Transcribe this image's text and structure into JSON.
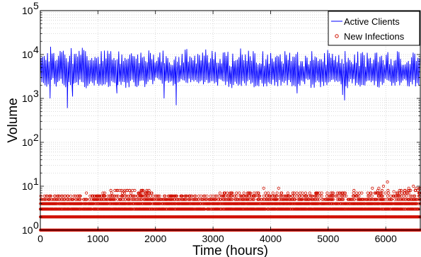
{
  "chart_data": {
    "type": "line",
    "xlabel": "Time (hours)",
    "ylabel": "Volume",
    "xlim": [
      0,
      6600
    ],
    "ylim": [
      1,
      100000
    ],
    "yscale": "log",
    "xticks": [
      0,
      1000,
      2000,
      3000,
      4000,
      5000,
      6000
    ],
    "xtick_labels": [
      "0",
      "1000",
      "2000",
      "3000",
      "4000",
      "5000",
      "6000"
    ],
    "yticks": [
      1,
      10,
      100,
      1000,
      10000,
      100000
    ],
    "ytick_labels": [
      {
        "base": "10",
        "exp": "0"
      },
      {
        "base": "10",
        "exp": "1"
      },
      {
        "base": "10",
        "exp": "2"
      },
      {
        "base": "10",
        "exp": "3"
      },
      {
        "base": "10",
        "exp": "4"
      },
      {
        "base": "10",
        "exp": "5"
      }
    ],
    "grid": true,
    "legend_position": "top-right",
    "series": [
      {
        "name": "Active Clients",
        "style": "line",
        "color": "#0000ff",
        "period_hours": 24,
        "peak_values": [
          12000,
          15000,
          16000,
          13000,
          17000,
          15000,
          14000,
          12000,
          16000,
          13000,
          12000,
          11000,
          13000,
          14000,
          12500,
          13500,
          12000,
          14000,
          13000,
          12000,
          11500,
          12500,
          13000,
          12000,
          14000,
          13500,
          12000,
          11000,
          13000,
          12000,
          14000,
          12500,
          12000,
          13000,
          14500,
          12500,
          14000,
          12000,
          13000,
          12000,
          11000,
          12500,
          14000,
          13000,
          12000,
          11500,
          13000,
          12500,
          12000,
          14000,
          11000,
          12000,
          13000,
          12500,
          12000,
          11000,
          13000,
          12000,
          11500,
          12500,
          13000,
          12000,
          14000,
          11500,
          12000,
          13000,
          12500,
          12000,
          11000,
          13000,
          12000,
          12500,
          11000,
          13000,
          12000,
          12500,
          11500,
          12000,
          13000,
          12000
        ],
        "trough_values": [
          2200,
          2000,
          2400,
          2100,
          2300,
          2000,
          1900,
          2100,
          2200,
          2000,
          2100,
          2300,
          2000,
          2200,
          2100,
          2000,
          2300,
          2100,
          2000,
          2200,
          2100,
          2300,
          2000,
          2200,
          2400,
          2300,
          2200,
          2100,
          2300,
          2200,
          2100,
          2300,
          2200,
          2400,
          2300,
          2200,
          2100,
          2300,
          2200,
          2100,
          2000,
          2200,
          2100,
          2000,
          2300,
          2100,
          2200,
          2000,
          2100,
          2300,
          2200,
          2400,
          2100,
          2000,
          2200,
          2100,
          2300,
          2000,
          2200,
          2100,
          2000,
          2300,
          2200,
          2100,
          2000,
          2200,
          2300,
          2100,
          2000,
          2200,
          2100,
          2000,
          2300,
          2200,
          2100,
          2000,
          2200,
          2100,
          2300,
          2000
        ],
        "dips": [
          {
            "x": 170,
            "y": 1000
          },
          {
            "x": 470,
            "y": 600
          },
          {
            "x": 560,
            "y": 1100
          },
          {
            "x": 1330,
            "y": 1300
          },
          {
            "x": 2150,
            "y": 1000
          },
          {
            "x": 2360,
            "y": 700
          },
          {
            "x": 4460,
            "y": 1300
          },
          {
            "x": 5250,
            "y": 1200
          },
          {
            "x": 5285,
            "y": 900
          }
        ]
      },
      {
        "name": "New Infections",
        "style": "scatter",
        "marker": "circle",
        "color": "#d01000",
        "base_levels": [
          1,
          2,
          3,
          4
        ],
        "segments": [
          {
            "x": [
              0,
              1000
            ],
            "max": 6
          },
          {
            "x": [
              1000,
              2000
            ],
            "max": 8
          },
          {
            "x": [
              2000,
              3100
            ],
            "max": 6
          },
          {
            "x": [
              3100,
              4200
            ],
            "max": 7
          },
          {
            "x": [
              4200,
              5400
            ],
            "max": 7
          },
          {
            "x": [
              5400,
              6600
            ],
            "max": 9
          }
        ],
        "outliers": [
          {
            "x": 800,
            "y": 7
          },
          {
            "x": 1450,
            "y": 7.5
          },
          {
            "x": 1550,
            "y": 8
          },
          {
            "x": 1640,
            "y": 8
          },
          {
            "x": 1780,
            "y": 8
          },
          {
            "x": 1860,
            "y": 7.5
          },
          {
            "x": 3780,
            "y": 7
          },
          {
            "x": 3880,
            "y": 9
          },
          {
            "x": 4140,
            "y": 9
          },
          {
            "x": 4300,
            "y": 7
          },
          {
            "x": 5880,
            "y": 9
          },
          {
            "x": 5960,
            "y": 10
          },
          {
            "x": 6030,
            "y": 12.5
          },
          {
            "x": 6140,
            "y": 7.5
          },
          {
            "x": 6270,
            "y": 8
          },
          {
            "x": 6410,
            "y": 8
          },
          {
            "x": 6480,
            "y": 10
          },
          {
            "x": 6530,
            "y": 9
          }
        ]
      }
    ]
  }
}
